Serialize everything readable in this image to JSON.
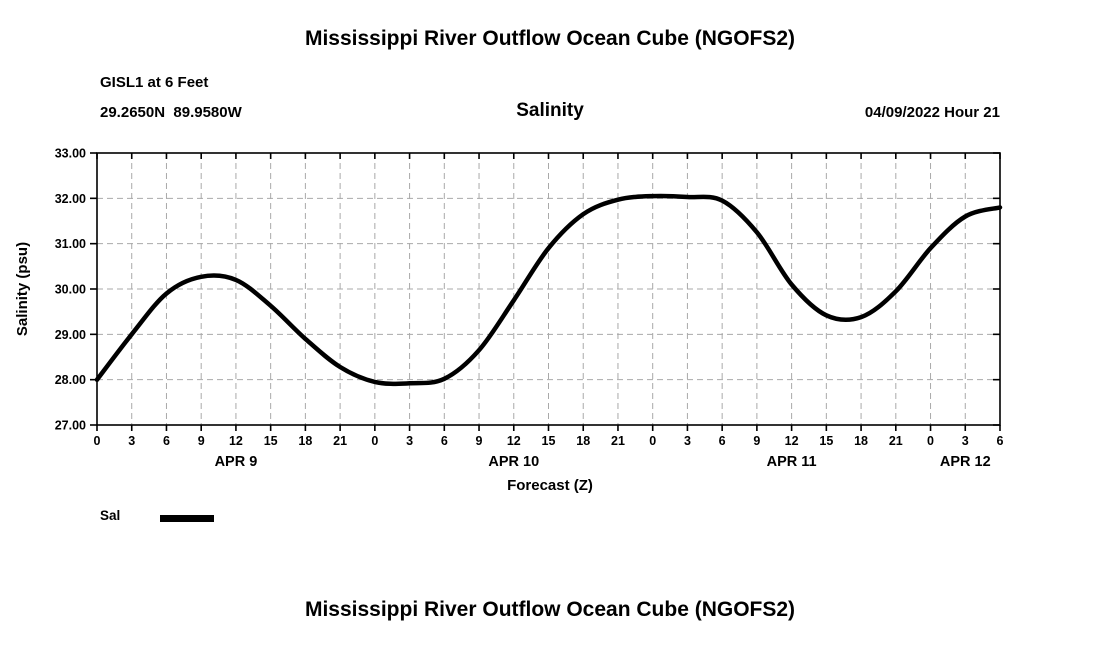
{
  "titles": {
    "top": "Mississippi River Outflow Ocean Cube (NGOFS2)",
    "bottom": "Mississippi River Outflow Ocean Cube (NGOFS2)"
  },
  "header": {
    "station": "GISL1 at 6 Feet",
    "coordinates": "29.2650N  89.9580W",
    "plot_title": "Salinity",
    "run_datetime": "04/09/2022 Hour 21"
  },
  "legend": {
    "label": "Sal",
    "line_color": "#000000"
  },
  "colors": {
    "curve": "#000000",
    "grid": "#a9a9a9",
    "text": "#000000",
    "background": "#ffffff"
  },
  "chart_data": {
    "type": "line",
    "title": "Salinity",
    "xlabel": "Forecast (Z)",
    "ylabel": "Salinity (psu)",
    "xlim": [
      0,
      78
    ],
    "ylim": [
      27,
      33
    ],
    "xtick_interval": 3,
    "ytick_step": 1,
    "xticks": [
      "0",
      "3",
      "6",
      "9",
      "12",
      "15",
      "18",
      "21",
      "0",
      "3",
      "6",
      "9",
      "12",
      "15",
      "18",
      "21",
      "0",
      "3",
      "6",
      "9",
      "12",
      "15",
      "18",
      "21",
      "0",
      "3",
      "6"
    ],
    "yticks": [
      "27.00",
      "28.00",
      "29.00",
      "30.00",
      "31.00",
      "32.00",
      "33.00"
    ],
    "day_labels": [
      {
        "label": "APR 9",
        "center_hour": 12
      },
      {
        "label": "APR 10",
        "center_hour": 36
      },
      {
        "label": "APR 11",
        "center_hour": 60
      },
      {
        "label": "APR 12",
        "center_hour": 75
      }
    ],
    "grid": true,
    "grid_style": "dashed",
    "legend_position": "bottom-left",
    "series": [
      {
        "name": "Sal",
        "color": "#000000",
        "x": [
          0,
          3,
          6,
          9,
          12,
          15,
          18,
          21,
          24,
          27,
          30,
          33,
          36,
          39,
          42,
          45,
          48,
          51,
          54,
          57,
          60,
          63,
          66,
          69,
          72,
          75,
          78
        ],
        "values": [
          28.0,
          29.0,
          29.9,
          30.27,
          30.2,
          29.63,
          28.9,
          28.28,
          27.95,
          27.92,
          28.02,
          28.65,
          29.75,
          30.9,
          31.65,
          31.97,
          32.05,
          32.03,
          31.95,
          31.25,
          30.1,
          29.42,
          29.38,
          29.95,
          30.9,
          31.6,
          31.8
        ]
      }
    ]
  }
}
